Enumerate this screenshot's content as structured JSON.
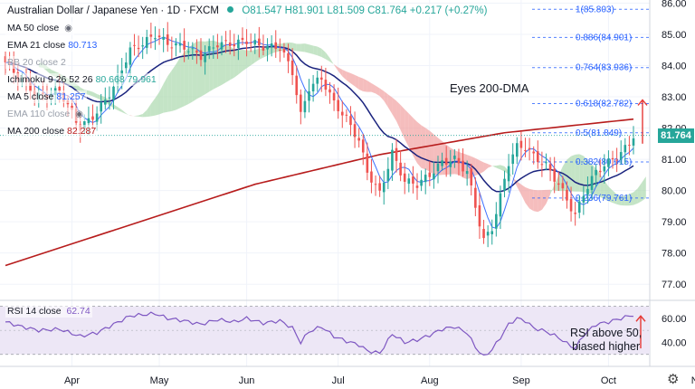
{
  "header": {
    "symbol": "Australian Dollar / Japanese Yen · 1D · FXCM",
    "ohlc": "O81.547 H81.901 L81.509 C81.764 +0.217 (+0.27%)"
  },
  "legend": [
    {
      "name": "MA 50 close",
      "value": "",
      "color": "#2962ff",
      "dim": false,
      "eye": true
    },
    {
      "name": "EMA 21 close",
      "value": "80.713",
      "color": "#2962ff",
      "dim": false,
      "eye": false
    },
    {
      "name": "BB 20 close 2",
      "value": "",
      "color": "#9aa0ab",
      "dim": true,
      "eye": false
    },
    {
      "name": "Ichimoku 9 26 52 26",
      "value": "80.668  79.961",
      "color": "#26a69a",
      "dim": false,
      "eye": false
    },
    {
      "name": "MA 5 close",
      "value": "81.257",
      "color": "#2962ff",
      "dim": false,
      "eye": false
    },
    {
      "name": "EMA 110 close",
      "value": "",
      "color": "#9aa0ab",
      "dim": true,
      "eye": true
    },
    {
      "name": "MA 200 close",
      "value": "82.287",
      "color": "#b71c1c",
      "dim": false,
      "eye": false
    }
  ],
  "price_tag": "81.764",
  "annotations": {
    "main": "Eyes 200-DMA",
    "rsi_line1": "RSI above 50,",
    "rsi_line2": "biased higher"
  },
  "rsi_legend": {
    "name": "RSI 14 close",
    "value": "62.74"
  },
  "colors": {
    "up": "#26a69a",
    "down": "#ef5350",
    "ma200": "#b71c1c",
    "ema21": "#1a237e",
    "ma5": "#2962ff",
    "cloud_bull": "#a5d6a7",
    "cloud_bear": "#ef9a9a",
    "fib": "#2962ff",
    "rsi_line": "#7e57c2",
    "rsi_band": "#ede7f6",
    "arrow": "#e53935"
  },
  "chart_data": {
    "type": "candlestick",
    "symbol": "AUDJPY",
    "timeframe": "1D",
    "ylim": [
      76.6,
      86.1
    ],
    "y_ticks": [
      77.0,
      78.0,
      79.0,
      80.0,
      81.0,
      82.0,
      83.0,
      84.0,
      85.0,
      86.0
    ],
    "x_labels": [
      "Apr",
      "May",
      "Jun",
      "Jul",
      "Aug",
      "Sep",
      "Oct",
      "Nov"
    ],
    "x_label_index": [
      16,
      37,
      58,
      80,
      102,
      124,
      145,
      167
    ],
    "bars": 152,
    "last_close": 81.764,
    "close_path": [
      [
        0,
        84.1
      ],
      [
        4,
        83.5
      ],
      [
        8,
        83.0
      ],
      [
        13,
        83.2
      ],
      [
        18,
        82.0
      ],
      [
        22,
        82.5
      ],
      [
        26,
        83.3
      ],
      [
        30,
        84.5
      ],
      [
        33,
        84.7
      ],
      [
        36,
        85.0
      ],
      [
        39,
        84.7
      ],
      [
        43,
        84.6
      ],
      [
        47,
        84.3
      ],
      [
        51,
        84.7
      ],
      [
        55,
        84.7
      ],
      [
        58,
        84.8
      ],
      [
        62,
        84.6
      ],
      [
        66,
        84.6
      ],
      [
        69,
        83.8
      ],
      [
        71,
        82.4
      ],
      [
        73,
        83.3
      ],
      [
        76,
        83.6
      ],
      [
        79,
        82.8
      ],
      [
        82,
        82.3
      ],
      [
        85,
        81.6
      ],
      [
        87,
        80.6
      ],
      [
        90,
        79.9
      ],
      [
        93,
        81.2
      ],
      [
        96,
        80.3
      ],
      [
        99,
        80.2
      ],
      [
        102,
        80.5
      ],
      [
        105,
        80.9
      ],
      [
        108,
        81.0
      ],
      [
        111,
        80.6
      ],
      [
        113,
        79.5
      ],
      [
        115,
        78.4
      ],
      [
        117,
        78.8
      ],
      [
        119,
        79.8
      ],
      [
        121,
        80.9
      ],
      [
        123,
        81.4
      ],
      [
        125,
        81.4
      ],
      [
        127,
        81.1
      ],
      [
        130,
        80.8
      ],
      [
        133,
        80.2
      ],
      [
        135,
        79.7
      ],
      [
        137,
        79.2
      ],
      [
        139,
        79.9
      ],
      [
        142,
        80.6
      ],
      [
        145,
        80.9
      ],
      [
        148,
        81.2
      ],
      [
        150,
        81.5
      ],
      [
        151,
        81.764
      ]
    ],
    "ma200": [
      [
        0,
        77.6
      ],
      [
        30,
        78.9
      ],
      [
        60,
        80.2
      ],
      [
        90,
        81.15
      ],
      [
        120,
        81.85
      ],
      [
        152,
        82.3
      ]
    ],
    "fib_levels": [
      {
        "label": "1(85.803)",
        "value": 85.803
      },
      {
        "label": "0.886(84.901)",
        "value": 84.901
      },
      {
        "label": "0.764(83.936)",
        "value": 83.936
      },
      {
        "label": "0.618(82.782)",
        "value": 82.782
      },
      {
        "label": "0.5(81.849)",
        "value": 81.849
      },
      {
        "label": "0.382(80.915)",
        "value": 80.915
      },
      {
        "label": "0.236(79.761)",
        "value": 79.761
      }
    ],
    "rsi": {
      "ylim": [
        20,
        75
      ],
      "y_ticks": [
        40.0,
        60.0
      ],
      "band": [
        30,
        70
      ],
      "last": 62.74,
      "path": [
        [
          0,
          57
        ],
        [
          4,
          53
        ],
        [
          8,
          50
        ],
        [
          13,
          51
        ],
        [
          18,
          45
        ],
        [
          22,
          48
        ],
        [
          26,
          55
        ],
        [
          30,
          62
        ],
        [
          33,
          63
        ],
        [
          36,
          64
        ],
        [
          39,
          60
        ],
        [
          43,
          58
        ],
        [
          47,
          55
        ],
        [
          51,
          59
        ],
        [
          55,
          57
        ],
        [
          58,
          60
        ],
        [
          62,
          56
        ],
        [
          66,
          58
        ],
        [
          69,
          52
        ],
        [
          71,
          40
        ],
        [
          73,
          49
        ],
        [
          76,
          53
        ],
        [
          79,
          45
        ],
        [
          82,
          41
        ],
        [
          85,
          38
        ],
        [
          87,
          33
        ],
        [
          90,
          31
        ],
        [
          93,
          47
        ],
        [
          96,
          40
        ],
        [
          99,
          42
        ],
        [
          102,
          46
        ],
        [
          105,
          51
        ],
        [
          108,
          53
        ],
        [
          111,
          48
        ],
        [
          113,
          36
        ],
        [
          115,
          28
        ],
        [
          117,
          34
        ],
        [
          119,
          44
        ],
        [
          121,
          55
        ],
        [
          123,
          60
        ],
        [
          125,
          58
        ],
        [
          127,
          52
        ],
        [
          130,
          49
        ],
        [
          133,
          44
        ],
        [
          135,
          39
        ],
        [
          137,
          35
        ],
        [
          139,
          46
        ],
        [
          142,
          55
        ],
        [
          145,
          57
        ],
        [
          148,
          60
        ],
        [
          150,
          62
        ],
        [
          151,
          62.74
        ]
      ]
    }
  }
}
